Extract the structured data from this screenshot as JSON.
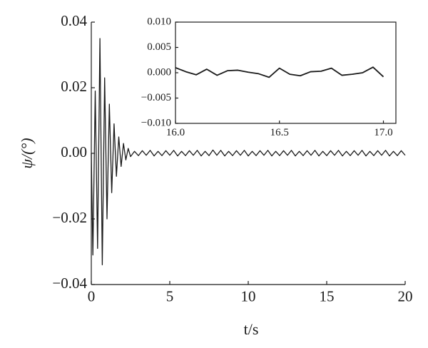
{
  "chart_data": [
    {
      "type": "line",
      "x_label": "t/s",
      "y_label": "ψ/(°)",
      "color": "#1a1a1a",
      "xlim": [
        0,
        20
      ],
      "xticks": [
        0,
        5,
        10,
        15,
        20
      ],
      "ylim": [
        -0.04,
        0.04
      ],
      "yticks": [
        {
          "value": -0.04,
          "label": "−0.04"
        },
        {
          "value": -0.02,
          "label": "−0.02"
        },
        {
          "value": 0,
          "label": "0.00"
        },
        0.02,
        0.04
      ],
      "x": [
        0,
        0.1,
        0.25,
        0.4,
        0.55,
        0.7,
        0.85,
        1.0,
        1.15,
        1.3,
        1.45,
        1.6,
        1.75,
        1.9,
        2.05,
        2.2,
        2.35,
        2.5,
        2.75,
        3,
        3.25,
        3.5,
        3.75,
        4,
        4.25,
        4.5,
        4.75,
        5,
        5.25,
        5.5,
        5.75,
        6,
        6.25,
        6.5,
        6.75,
        7,
        7.25,
        7.5,
        7.75,
        8,
        8.25,
        8.5,
        8.75,
        9,
        9.25,
        9.5,
        9.75,
        10,
        10.25,
        10.5,
        10.75,
        11,
        11.25,
        11.5,
        11.75,
        12,
        12.25,
        12.5,
        12.75,
        13,
        13.25,
        13.5,
        13.75,
        14,
        14.25,
        14.5,
        14.75,
        15,
        15.25,
        15.5,
        15.75,
        16,
        16.25,
        16.5,
        16.75,
        17,
        17.25,
        17.5,
        17.75,
        18,
        18.25,
        18.5,
        18.75,
        19,
        19.25,
        19.5,
        19.75,
        20
      ],
      "values": [
        0,
        -0.031,
        0.019,
        -0.029,
        0.035,
        -0.034,
        0.023,
        -0.02,
        0.015,
        -0.012,
        0.009,
        -0.007,
        0.005,
        -0.004,
        0.003,
        -0.002,
        0.0015,
        -0.001,
        0.0006,
        -0.0007,
        0.0008,
        -0.0006,
        0.0009,
        -0.0008,
        0.0006,
        -0.0007,
        0.0008,
        -0.0006,
        0.0009,
        -0.0008,
        0.0006,
        -0.0007,
        0.0008,
        -0.0006,
        0.0009,
        -0.0008,
        0.0006,
        -0.0007,
        0.001,
        -0.0006,
        0.0009,
        -0.0008,
        0.0006,
        -0.0007,
        0.0008,
        -0.0006,
        0.0009,
        -0.0008,
        0.0006,
        -0.0007,
        0.0008,
        -0.0006,
        0.0009,
        -0.0008,
        0.0006,
        -0.0007,
        0.0008,
        -0.0006,
        0.0009,
        -0.0008,
        0.0006,
        -0.0007,
        0.0008,
        -0.0006,
        0.0009,
        -0.0008,
        0.0006,
        -0.0007,
        0.0008,
        -0.0006,
        0.0009,
        -0.0008,
        0.0006,
        -0.0007,
        0.0008,
        -0.0006,
        0.0009,
        -0.0008,
        0.0006,
        -0.0007,
        0.0008,
        -0.0006,
        0.0009,
        -0.0008,
        0.0006,
        -0.0007,
        0.0008,
        -0.0006
      ]
    },
    {
      "type": "line",
      "color": "#1a1a1a",
      "xlim": [
        16.0,
        17.06
      ],
      "xticks": [
        {
          "value": 16.0,
          "label": "16.0"
        },
        16.5,
        {
          "value": 17.0,
          "label": "17.0"
        }
      ],
      "ylim": [
        -0.01,
        0.01
      ],
      "yticks": [
        {
          "value": -0.01,
          "label": "−0.010"
        },
        {
          "value": -0.005,
          "label": "−0.005"
        },
        {
          "value": 0,
          "label": "0.000"
        },
        {
          "value": 0.005,
          "label": "0.005"
        },
        {
          "value": 0.01,
          "label": "0.010"
        }
      ],
      "x": [
        16.0,
        16.05,
        16.1,
        16.15,
        16.2,
        16.25,
        16.3,
        16.35,
        16.4,
        16.45,
        16.5,
        16.55,
        16.6,
        16.65,
        16.7,
        16.75,
        16.8,
        16.85,
        16.9,
        16.95,
        17.0
      ],
      "values": [
        0.001,
        0.0002,
        -0.0004,
        0.0007,
        -0.0005,
        0.0004,
        0.0005,
        0.0001,
        -0.0002,
        -0.0009,
        0.0009,
        -0.0003,
        -0.0006,
        0.0002,
        0.0003,
        0.0009,
        -0.0005,
        -0.0003,
        0.0,
        0.0011,
        -0.0008
      ]
    }
  ]
}
